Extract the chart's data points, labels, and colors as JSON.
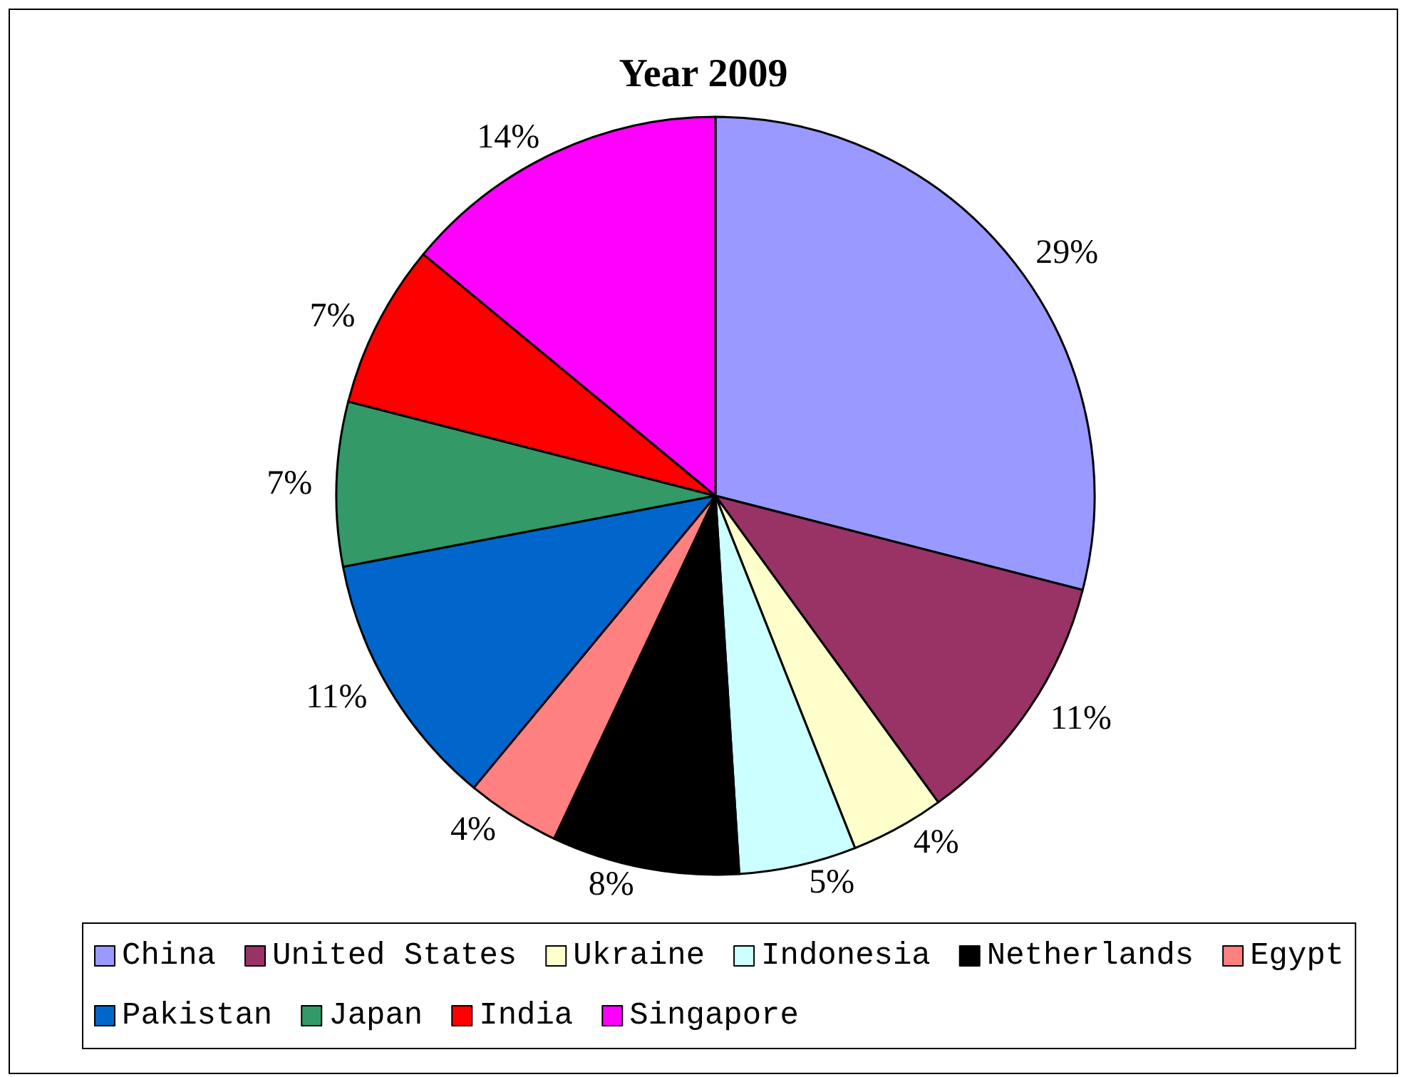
{
  "chart_data": {
    "type": "pie",
    "title": "Year 2009",
    "categories": [
      "China",
      "United States",
      "Ukraine",
      "Indonesia",
      "Netherlands",
      "Egypt",
      "Pakistan",
      "Japan",
      "India",
      "Singapore"
    ],
    "values": [
      29,
      11,
      4,
      5,
      8,
      4,
      11,
      7,
      7,
      14
    ],
    "value_labels": [
      "29%",
      "11%",
      "4%",
      "5%",
      "8%",
      "4%",
      "11%",
      "7%",
      "7%",
      "14%"
    ],
    "colors": [
      "#9999ff",
      "#993366",
      "#ffffcc",
      "#ccffff",
      "#000000",
      "#ff8080",
      "#0066cc",
      "#339966",
      "#ff0000",
      "#ff00ff"
    ],
    "legend": "bottom"
  }
}
